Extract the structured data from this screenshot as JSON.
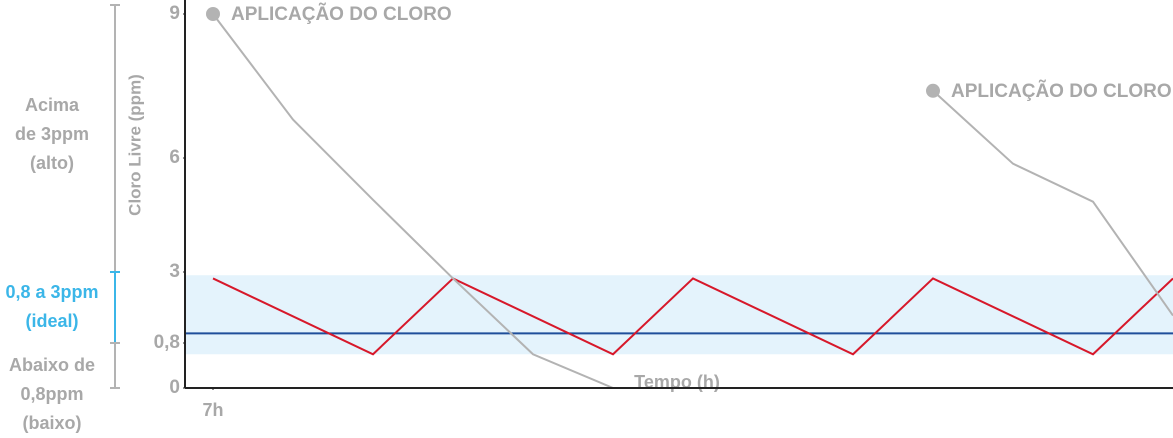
{
  "chart_data": {
    "type": "line",
    "y_label": "Cloro Livre (ppm)",
    "x_label": "Tempo (h)",
    "xlim": [
      -0.35,
      12
    ],
    "xticks": [
      {
        "value": 0,
        "label": "7h"
      }
    ],
    "ylim": [
      0,
      9
    ],
    "yticks": [
      0,
      {
        "value": 0.8,
        "label": "0,8"
      },
      3,
      6,
      9
    ],
    "band": {
      "range": [
        0.6,
        2.9
      ],
      "color": "#e4f3fc"
    },
    "reference_line": {
      "value": 1.1,
      "color": "#1f4e9a"
    },
    "series": [
      {
        "color": "#d7182a",
        "x": [
          0,
          2,
          3,
          5,
          6,
          8,
          9,
          11,
          12
        ],
        "values": [
          2.8,
          0.6,
          2.8,
          0.6,
          2.8,
          0.6,
          2.8,
          0.6,
          2.8
        ]
      },
      {
        "color": "#b3b3b3",
        "annotation": "APLICAÇÃO DO CLORO",
        "x": [
          0,
          1,
          2,
          3,
          4,
          5,
          8
        ],
        "values": [
          9,
          6.8,
          4.9,
          2.8,
          0.6,
          0,
          0
        ]
      },
      {
        "color": "#b3b3b3",
        "annotation": "APLICAÇÃO DO CLORO",
        "x": [
          9,
          10,
          11,
          12
        ],
        "values": [
          7.4,
          5.85,
          4.85,
          1.65
        ]
      }
    ],
    "ranges": [
      {
        "range": [
          3,
          9
        ],
        "lines": [
          "Acima",
          "de 3ppm",
          "(alto)"
        ],
        "color": "#b3b3b3"
      },
      {
        "range": [
          0.8,
          3
        ],
        "lines": [
          "0,8 a 3ppm",
          "(ideal)"
        ],
        "color": "#3bb6e8"
      },
      {
        "range": [
          0,
          0.8
        ],
        "lines": [
          "Abaixo de",
          "0,8ppm",
          "(baixo)"
        ],
        "color": "#b3b3b3"
      }
    ]
  }
}
